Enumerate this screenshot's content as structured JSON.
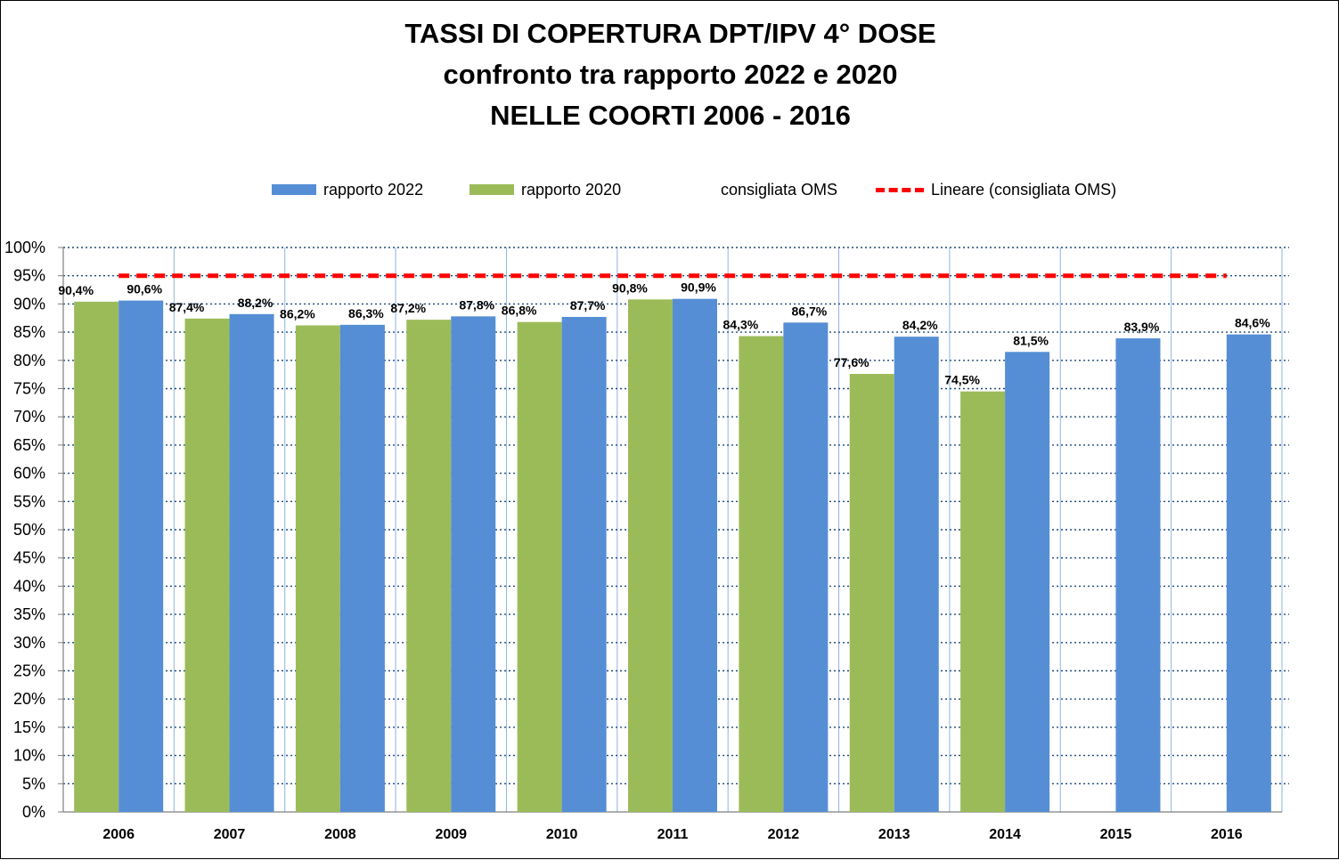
{
  "chart_data": {
    "type": "bar",
    "title_lines": [
      "TASSI DI COPERTURA DPT/IPV 4° DOSE",
      "confronto tra rapporto 2022 e 2020",
      "NELLE COORTI 2006 - 2016"
    ],
    "categories": [
      "2006",
      "2007",
      "2008",
      "2009",
      "2010",
      "2011",
      "2012",
      "2013",
      "2014",
      "2015",
      "2016"
    ],
    "series": [
      {
        "name": "rapporto 2020",
        "color": "#9bbb59",
        "values": [
          90.4,
          87.4,
          86.2,
          87.2,
          86.8,
          90.8,
          84.3,
          77.6,
          74.5,
          null,
          null
        ],
        "labels": [
          "90,4%",
          "87,4%",
          "86,2%",
          "87,2%",
          "86,8%",
          "90,8%",
          "84,3%",
          "77,6%",
          "74,5%",
          "",
          ""
        ]
      },
      {
        "name": "rapporto 2022",
        "color": "#558ed5",
        "values": [
          90.6,
          88.2,
          86.3,
          87.8,
          87.7,
          90.9,
          86.7,
          84.2,
          81.5,
          83.9,
          84.6
        ],
        "labels": [
          "90,6%",
          "88,2%",
          "86,3%",
          "87,8%",
          "87,7%",
          "90,9%",
          "86,7%",
          "84,2%",
          "81,5%",
          "83,9%",
          "84,6%"
        ]
      }
    ],
    "reference": {
      "name": "consigliata OMS",
      "trend_name": "Lineare (consigliata OMS)",
      "value": 95,
      "color": "#ff0000"
    },
    "yticks": [
      "0%",
      "5%",
      "10%",
      "15%",
      "20%",
      "25%",
      "30%",
      "35%",
      "40%",
      "45%",
      "50%",
      "55%",
      "60%",
      "65%",
      "70%",
      "75%",
      "80%",
      "85%",
      "90%",
      "95%",
      "100%"
    ],
    "ylim": [
      0,
      100
    ],
    "grid": true,
    "legend_position": "top"
  },
  "legend": {
    "items": [
      "rapporto 2022",
      "rapporto 2020",
      "consigliata OMS",
      "Lineare (consigliata OMS)"
    ]
  }
}
